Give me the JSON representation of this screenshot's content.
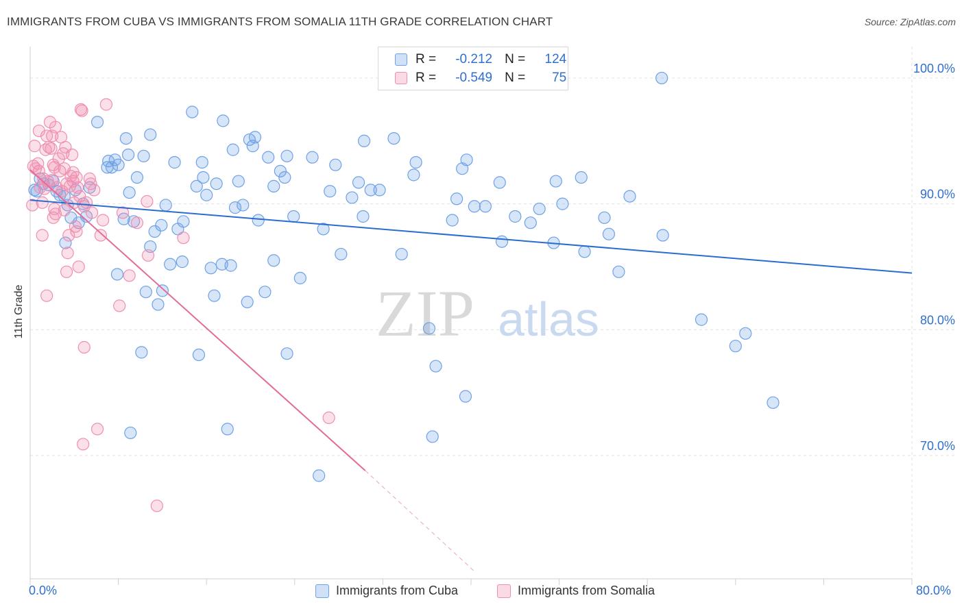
{
  "title": "IMMIGRANTS FROM CUBA VS IMMIGRANTS FROM SOMALIA 11TH GRADE CORRELATION CHART",
  "source": "Source: ZipAtlas.com",
  "watermark": {
    "zip": "ZIP",
    "atlas": "atlas"
  },
  "legend": {
    "rows": [
      {
        "r_label": "R =",
        "r_value": "-0.212",
        "n_label": "N =",
        "n_value": "124",
        "color": "#6ea1e6"
      },
      {
        "r_label": "R =",
        "r_value": "-0.549",
        "n_label": "N =",
        "n_value": "75",
        "color": "#ef8fb0"
      }
    ]
  },
  "bottom_legend": [
    {
      "label": "Immigrants from Cuba",
      "color": "#6ea1e6"
    },
    {
      "label": "Immigrants from Somalia",
      "color": "#ef8fb0"
    }
  ],
  "chart_data": {
    "type": "scatter",
    "title": "IMMIGRANTS FROM CUBA VS IMMIGRANTS FROM SOMALIA 11TH GRADE CORRELATION CHART",
    "xlabel": "",
    "ylabel": "11th Grade",
    "xlim": [
      0,
      80
    ],
    "ylim": [
      60.2,
      102.5
    ],
    "x_tick_labels": [
      "0.0%",
      "80.0%"
    ],
    "y_ticks": [
      70,
      80,
      90,
      100
    ],
    "y_tick_labels": [
      "70.0%",
      "80.0%",
      "90.0%",
      "100.0%"
    ],
    "grid": true,
    "legend_position": "top-center",
    "series": [
      {
        "name": "Immigrants from Cuba",
        "color": "#6ea1e6",
        "trend": {
          "x": [
            0,
            80
          ],
          "y": [
            90.3,
            84.5
          ]
        },
        "points": [
          [
            0.4,
            91.1
          ],
          [
            0.6,
            91.0
          ],
          [
            0.9,
            92.0
          ],
          [
            1.2,
            91.6
          ],
          [
            1.7,
            91.5
          ],
          [
            2.1,
            91.8
          ],
          [
            2.4,
            91.0
          ],
          [
            2.7,
            90.7
          ],
          [
            3.1,
            90.6
          ],
          [
            3.4,
            89.9
          ],
          [
            3.7,
            88.9
          ],
          [
            4.1,
            91.1
          ],
          [
            3.2,
            86.9
          ],
          [
            4.4,
            88.5
          ],
          [
            4.8,
            90.0
          ],
          [
            5.1,
            89.0
          ],
          [
            5.4,
            91.3
          ],
          [
            6.1,
            96.5
          ],
          [
            7.1,
            93.4
          ],
          [
            7.4,
            92.9
          ],
          [
            7.7,
            93.5
          ],
          [
            7.0,
            92.9
          ],
          [
            8.0,
            93.1
          ],
          [
            8.5,
            88.8
          ],
          [
            7.9,
            84.4
          ],
          [
            8.7,
            95.2
          ],
          [
            9.0,
            90.9
          ],
          [
            8.9,
            93.9
          ],
          [
            9.4,
            88.6
          ],
          [
            9.7,
            92.1
          ],
          [
            10.1,
            78.2
          ],
          [
            9.1,
            71.8
          ],
          [
            10.3,
            93.8
          ],
          [
            10.5,
            83.0
          ],
          [
            10.9,
            86.6
          ],
          [
            10.9,
            95.5
          ],
          [
            11.3,
            87.8
          ],
          [
            11.6,
            82.0
          ],
          [
            11.9,
            88.3
          ],
          [
            12.0,
            83.1
          ],
          [
            12.3,
            89.9
          ],
          [
            12.7,
            85.2
          ],
          [
            13.1,
            93.3
          ],
          [
            13.4,
            88.0
          ],
          [
            13.8,
            85.4
          ],
          [
            13.9,
            88.6
          ],
          [
            14.7,
            97.3
          ],
          [
            15.1,
            91.4
          ],
          [
            15.3,
            78.0
          ],
          [
            15.6,
            93.3
          ],
          [
            15.7,
            92.1
          ],
          [
            16.0,
            90.7
          ],
          [
            16.4,
            84.9
          ],
          [
            16.7,
            82.7
          ],
          [
            16.9,
            91.6
          ],
          [
            17.4,
            85.2
          ],
          [
            17.5,
            96.6
          ],
          [
            17.9,
            72.1
          ],
          [
            18.2,
            85.1
          ],
          [
            18.4,
            94.3
          ],
          [
            18.6,
            89.7
          ],
          [
            18.9,
            91.8
          ],
          [
            19.3,
            89.9
          ],
          [
            19.7,
            82.2
          ],
          [
            19.9,
            95.1
          ],
          [
            20.2,
            94.6
          ],
          [
            20.4,
            95.3
          ],
          [
            20.7,
            88.7
          ],
          [
            21.3,
            83.0
          ],
          [
            21.6,
            93.7
          ],
          [
            22.1,
            91.4
          ],
          [
            22.1,
            85.5
          ],
          [
            22.7,
            92.6
          ],
          [
            23.1,
            92.1
          ],
          [
            23.3,
            78.1
          ],
          [
            23.3,
            93.8
          ],
          [
            23.9,
            89.0
          ],
          [
            24.5,
            84.1
          ],
          [
            25.6,
            93.7
          ],
          [
            26.2,
            68.4
          ],
          [
            26.6,
            88.0
          ],
          [
            27.2,
            91.0
          ],
          [
            27.7,
            93.1
          ],
          [
            28.2,
            86.0
          ],
          [
            29.2,
            90.5
          ],
          [
            29.8,
            91.7
          ],
          [
            30.2,
            89.0
          ],
          [
            30.3,
            95.0
          ],
          [
            30.9,
            91.1
          ],
          [
            31.7,
            91.1
          ],
          [
            33.0,
            95.2
          ],
          [
            33.7,
            86.0
          ],
          [
            34.8,
            92.3
          ],
          [
            35.0,
            93.3
          ],
          [
            36.2,
            80.1
          ],
          [
            36.5,
            71.5
          ],
          [
            36.8,
            77.1
          ],
          [
            38.3,
            88.7
          ],
          [
            38.7,
            90.4
          ],
          [
            39.2,
            92.8
          ],
          [
            39.5,
            74.7
          ],
          [
            39.6,
            93.5
          ],
          [
            40.3,
            89.8
          ],
          [
            41.3,
            89.8
          ],
          [
            42.6,
            91.7
          ],
          [
            42.8,
            87.0
          ],
          [
            44.0,
            89.0
          ],
          [
            45.4,
            88.5
          ],
          [
            46.2,
            89.6
          ],
          [
            47.5,
            86.9
          ],
          [
            47.7,
            91.8
          ],
          [
            48.3,
            90.0
          ],
          [
            50.0,
            92.1
          ],
          [
            50.3,
            86.2
          ],
          [
            52.1,
            88.9
          ],
          [
            52.5,
            87.6
          ],
          [
            53.4,
            84.6
          ],
          [
            54.4,
            90.6
          ],
          [
            57.3,
            100.0
          ],
          [
            57.4,
            87.5
          ],
          [
            60.9,
            80.8
          ],
          [
            64.0,
            78.7
          ],
          [
            64.9,
            79.7
          ],
          [
            67.4,
            74.2
          ]
        ]
      },
      {
        "name": "Immigrants from Somalia",
        "color": "#ef8fb0",
        "trend": {
          "x": [
            0,
            30.4
          ],
          "y": [
            92.7,
            68.8
          ]
        },
        "trend_dashed": {
          "x": [
            30.4,
            40.3
          ],
          "y": [
            68.8,
            60.8
          ]
        },
        "points": [
          [
            0.2,
            89.9
          ],
          [
            0.3,
            93.0
          ],
          [
            0.4,
            94.6
          ],
          [
            0.5,
            92.8
          ],
          [
            0.7,
            93.2
          ],
          [
            0.8,
            92.6
          ],
          [
            0.8,
            95.8
          ],
          [
            0.9,
            91.3
          ],
          [
            1.1,
            87.5
          ],
          [
            1.1,
            90.1
          ],
          [
            1.2,
            92.0
          ],
          [
            1.3,
            91.2
          ],
          [
            1.4,
            94.3
          ],
          [
            1.5,
            95.4
          ],
          [
            1.6,
            91.8
          ],
          [
            1.5,
            82.7
          ],
          [
            1.7,
            94.5
          ],
          [
            1.8,
            96.5
          ],
          [
            1.9,
            94.4
          ],
          [
            2.0,
            95.4
          ],
          [
            2.0,
            91.9
          ],
          [
            2.1,
            93.1
          ],
          [
            2.2,
            92.9
          ],
          [
            2.1,
            88.9
          ],
          [
            2.3,
            96.1
          ],
          [
            2.4,
            91.3
          ],
          [
            2.3,
            89.2
          ],
          [
            2.6,
            93.6
          ],
          [
            2.7,
            92.6
          ],
          [
            2.8,
            95.3
          ],
          [
            2.9,
            91.0
          ],
          [
            3.0,
            94.0
          ],
          [
            3.1,
            92.8
          ],
          [
            3.1,
            89.5
          ],
          [
            3.2,
            94.5
          ],
          [
            3.3,
            91.6
          ],
          [
            3.3,
            84.6
          ],
          [
            3.4,
            86.1
          ],
          [
            3.5,
            87.5
          ],
          [
            3.7,
            92.2
          ],
          [
            3.8,
            93.9
          ],
          [
            3.9,
            92.5
          ],
          [
            3.9,
            91.8
          ],
          [
            4.0,
            90.1
          ],
          [
            4.1,
            88.2
          ],
          [
            4.2,
            92.1
          ],
          [
            4.2,
            87.8
          ],
          [
            4.3,
            91.3
          ],
          [
            4.4,
            85.0
          ],
          [
            4.5,
            90.6
          ],
          [
            4.7,
            97.4
          ],
          [
            4.9,
            89.8
          ],
          [
            4.9,
            78.6
          ],
          [
            4.8,
            70.9
          ],
          [
            5.1,
            90.1
          ],
          [
            5.4,
            92.0
          ],
          [
            5.5,
            91.6
          ],
          [
            5.6,
            89.3
          ],
          [
            5.8,
            91.1
          ],
          [
            6.1,
            72.1
          ],
          [
            6.4,
            87.5
          ],
          [
            6.6,
            88.7
          ],
          [
            6.9,
            97.9
          ],
          [
            8.1,
            81.9
          ],
          [
            8.4,
            89.3
          ],
          [
            9.0,
            84.3
          ],
          [
            9.7,
            88.5
          ],
          [
            10.6,
            90.2
          ],
          [
            10.7,
            85.9
          ],
          [
            11.5,
            66.0
          ],
          [
            13.9,
            87.3
          ],
          [
            27.1,
            73.0
          ],
          [
            4.6,
            97.5
          ],
          [
            2.2,
            89.6
          ],
          [
            3.6,
            91.4
          ]
        ]
      }
    ]
  }
}
